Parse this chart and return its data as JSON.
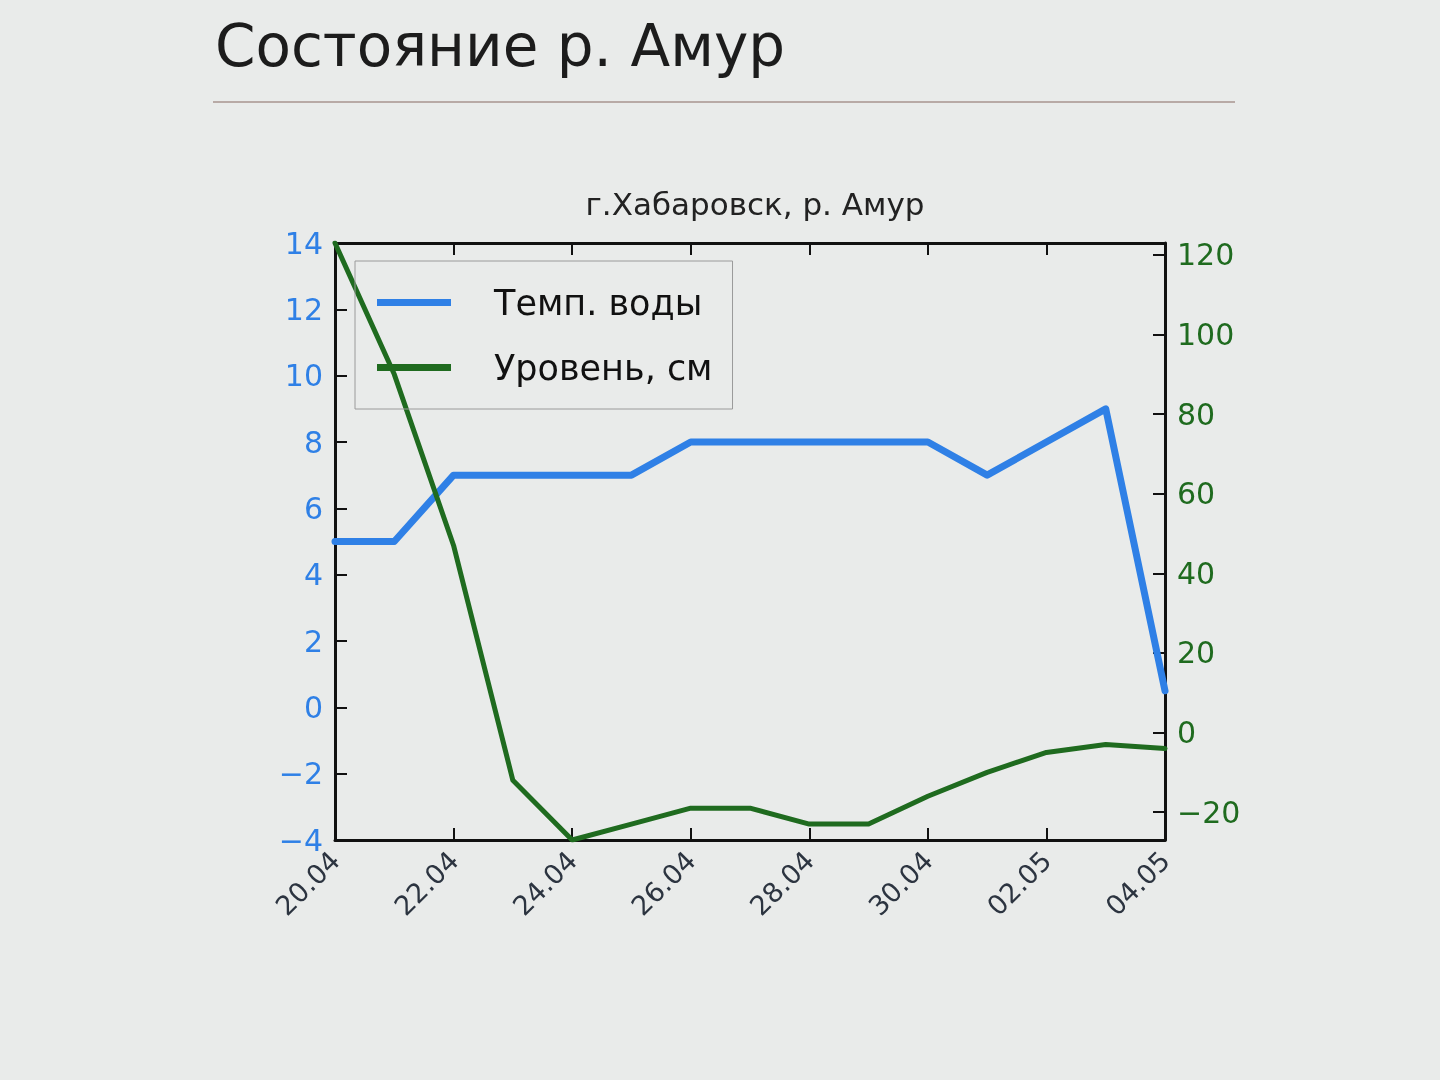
{
  "chart_data": {
    "type": "line",
    "title": "Состояние р. Амур",
    "subtitle": "г.Хабаровск, р. Амур",
    "categories": [
      "20.04",
      null,
      "22.04",
      null,
      "24.04",
      null,
      "26.04",
      null,
      "28.04",
      null,
      "30.04",
      null,
      "02.05",
      null,
      "04.05"
    ],
    "series": [
      {
        "name": "Темп. воды",
        "color": "#2f80e6",
        "values": [
          5,
          5,
          7,
          7,
          7,
          7,
          8,
          8,
          8,
          8,
          8,
          7,
          8,
          9,
          0.5
        ]
      },
      {
        "name": "Уровень, см",
        "color": "#1f6b1f",
        "axis": "y2",
        "values": [
          123,
          90,
          47,
          -12,
          -27,
          -23,
          -19,
          -19,
          -23,
          -23,
          -16,
          -10,
          -5,
          -3,
          -4
        ]
      }
    ],
    "ylim": [
      -4,
      14
    ],
    "yticks": [
      {
        "value": -4,
        "label": "−4"
      },
      {
        "value": -2,
        "label": "−2"
      },
      0,
      2,
      4,
      6,
      8,
      10,
      12,
      14
    ],
    "y2lim": [
      -27,
      123
    ],
    "y2ticks": [
      {
        "value": -20,
        "label": "−20"
      },
      0,
      20,
      40,
      60,
      80,
      100,
      120
    ],
    "legend": "top left",
    "marker": "none",
    "line_style": "solid",
    "grid": false
  }
}
